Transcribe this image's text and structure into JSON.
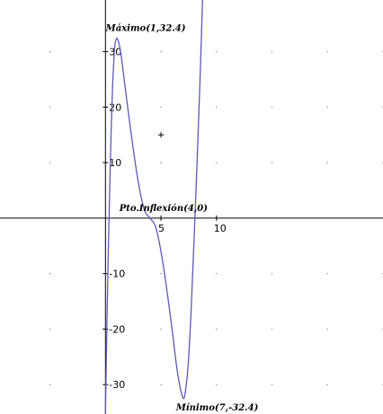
{
  "chart_data": {
    "type": "line",
    "title": "",
    "xlabel": "",
    "ylabel": "",
    "xlim": [
      -9.5,
      25.0
    ],
    "ylim": [
      -35.3,
      39.3
    ],
    "grid": "dots",
    "x_ticks": [
      5,
      10
    ],
    "x_tick_labels": [
      "5",
      "10"
    ],
    "y_ticks": [
      -30,
      -20,
      -10,
      10,
      20,
      30
    ],
    "y_tick_labels": [
      "-30",
      "-20",
      "-10",
      "10",
      "20",
      "30"
    ],
    "series": [
      {
        "color": "#5a5ab4",
        "points": [
          [
            0.0,
            -35.3
          ],
          [
            0.08,
            -25.0
          ],
          [
            0.17,
            -15.0
          ],
          [
            0.27,
            -5.0
          ],
          [
            0.38,
            5.0
          ],
          [
            0.5,
            15.0
          ],
          [
            0.65,
            24.0
          ],
          [
            0.82,
            30.5
          ],
          [
            1.0,
            32.4
          ],
          [
            1.25,
            31.2
          ],
          [
            1.5,
            28.0
          ],
          [
            2.0,
            20.0
          ],
          [
            2.5,
            12.5
          ],
          [
            3.0,
            6.0
          ],
          [
            3.5,
            1.5
          ],
          [
            4.0,
            0.0
          ],
          [
            4.5,
            -1.5
          ],
          [
            5.0,
            -6.0
          ],
          [
            5.5,
            -12.5
          ],
          [
            6.0,
            -20.0
          ],
          [
            6.5,
            -28.0
          ],
          [
            7.0,
            -32.4
          ],
          [
            7.25,
            -30.5
          ],
          [
            7.5,
            -25.0
          ],
          [
            7.75,
            -15.0
          ],
          [
            8.0,
            -3.0
          ],
          [
            8.25,
            10.0
          ],
          [
            8.5,
            24.0
          ],
          [
            8.75,
            39.3
          ]
        ]
      }
    ],
    "annotations": [
      {
        "text": "Máximo(1,32.4)",
        "x": 1,
        "y": 32.4
      },
      {
        "text": "Pto.Inflexión(4,0)",
        "x": 4,
        "y": 0
      },
      {
        "text": "Mínimo(7,-32.4)",
        "x": 7,
        "y": -32.4
      }
    ],
    "marker": {
      "x": 5,
      "y": 15
    }
  }
}
